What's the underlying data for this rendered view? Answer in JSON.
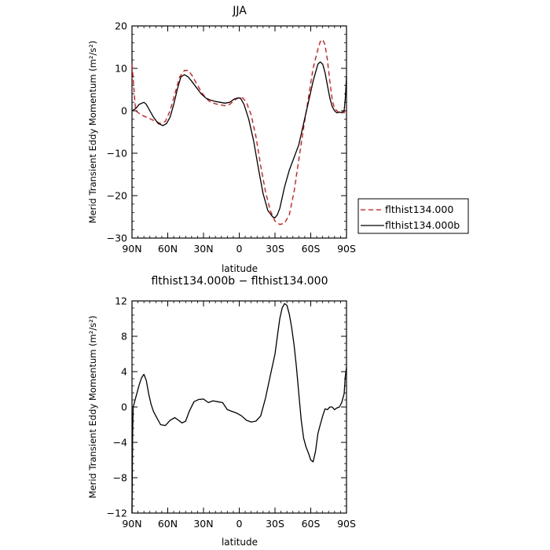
{
  "chart_data": [
    {
      "type": "line",
      "title": "JJA",
      "xlabel": "latitude",
      "ylabel": "Merid Transient Eddy Momentum (m²/s²)",
      "xlim": [
        -90,
        90
      ],
      "ylim": [
        -30,
        20
      ],
      "x_ticks": [
        -90,
        -60,
        -30,
        0,
        30,
        60,
        90
      ],
      "x_tick_labels": [
        "90N",
        "60N",
        "30N",
        "0",
        "30S",
        "60S",
        "90S"
      ],
      "y_ticks": [
        -30,
        -20,
        -10,
        0,
        10,
        20
      ],
      "y_tick_labels": [
        "−30",
        "−20",
        "−10",
        "0",
        "10",
        "20"
      ],
      "legend_position": "right",
      "series": [
        {
          "name": "flthist134.000",
          "color": "#ff0000",
          "dash": "dashed",
          "x": [
            -90,
            -87,
            -82,
            -78,
            -74,
            -70,
            -66,
            -62,
            -58,
            -54,
            -50,
            -46,
            -43,
            -40,
            -36,
            -32,
            -28,
            -24,
            -18,
            -12,
            -8,
            -4,
            0,
            3,
            6,
            10,
            14,
            18,
            22,
            26,
            30,
            34,
            38,
            42,
            46,
            50,
            54,
            58,
            62,
            66,
            68,
            70,
            72,
            74,
            76,
            78,
            80,
            82,
            84,
            86,
            88,
            89,
            90
          ],
          "y": [
            11,
            0,
            -1,
            -1.5,
            -2,
            -2.5,
            -3,
            -2.5,
            0,
            4,
            8,
            9.5,
            9.5,
            8.5,
            6.5,
            4.5,
            3,
            2,
            1.5,
            1.2,
            1.5,
            2.5,
            3.2,
            3,
            2,
            -1,
            -6,
            -13,
            -19,
            -23.5,
            -26,
            -26.8,
            -26.5,
            -24.5,
            -19,
            -11.5,
            -4,
            3,
            10,
            14.5,
            16.3,
            16.8,
            15.5,
            12,
            7,
            2.5,
            0.5,
            0,
            -0.5,
            -0.3,
            -0.5,
            0.5,
            1
          ]
        },
        {
          "name": "flthist134.000b",
          "color": "#000000",
          "dash": "solid",
          "x": [
            -90,
            -87,
            -84,
            -80,
            -78,
            -76,
            -72,
            -68,
            -64,
            -61,
            -58,
            -55,
            -52,
            -49,
            -46,
            -43,
            -40,
            -36,
            -32,
            -28,
            -24,
            -20,
            -16,
            -12,
            -8,
            -4,
            -1,
            1,
            4,
            8,
            12,
            16,
            20,
            24,
            28,
            30,
            32,
            34,
            38,
            42,
            46,
            50,
            54,
            58,
            62,
            66,
            68,
            70,
            72,
            74,
            76,
            78,
            80,
            82,
            84,
            86,
            87,
            88,
            89,
            90
          ],
          "y": [
            0,
            0.5,
            1.5,
            2,
            1.5,
            0.5,
            -1.5,
            -3,
            -3.5,
            -3,
            -1.5,
            1.5,
            5,
            8,
            8.5,
            8,
            7,
            5.5,
            4,
            3,
            2.5,
            2.2,
            2,
            1.8,
            2,
            2.8,
            3,
            3,
            1.5,
            -2,
            -7,
            -13.5,
            -19.5,
            -23.5,
            -25,
            -25.2,
            -24.5,
            -23,
            -18,
            -14,
            -11,
            -8,
            -3,
            2,
            7,
            11,
            11.5,
            11,
            9,
            6,
            3,
            1,
            0,
            -0.5,
            -0.3,
            -0.5,
            -0.2,
            0,
            3,
            8
          ]
        }
      ]
    },
    {
      "type": "line",
      "title": "flthist134.000b − flthist134.000",
      "xlabel": "latitude",
      "ylabel": "Merid Transient Eddy Momentum (m²/s²)",
      "xlim": [
        -90,
        90
      ],
      "ylim": [
        -12,
        12
      ],
      "x_ticks": [
        -90,
        -60,
        -30,
        0,
        30,
        60,
        90
      ],
      "x_tick_labels": [
        "90N",
        "60N",
        "30N",
        "0",
        "30S",
        "60S",
        "90S"
      ],
      "y_ticks": [
        -12,
        -8,
        -4,
        0,
        4,
        8,
        12
      ],
      "y_tick_labels": [
        "−12",
        "−8",
        "−4",
        "0",
        "4",
        "8",
        "12"
      ],
      "series": [
        {
          "color": "#000000",
          "dash": "solid",
          "x": [
            -90,
            -89.5,
            -89,
            -88,
            -86,
            -84,
            -82,
            -80,
            -78,
            -76,
            -74,
            -72,
            -70,
            -66,
            -62,
            -58,
            -54,
            -51,
            -48,
            -45,
            -42,
            -38,
            -34,
            -30,
            -26,
            -22,
            -18,
            -14,
            -10,
            -6,
            -2,
            2,
            6,
            10,
            14,
            18,
            22,
            26,
            30,
            32,
            34,
            36,
            38,
            40,
            42,
            44,
            46,
            48,
            50,
            52,
            54,
            56,
            58,
            60,
            62,
            64,
            66,
            68,
            70,
            72,
            74,
            76,
            78,
            80,
            82,
            84,
            86,
            88,
            89,
            90
          ],
          "y": [
            -12,
            -3,
            0,
            0.5,
            1.5,
            2.5,
            3.3,
            3.7,
            3,
            1.5,
            0.3,
            -0.5,
            -1,
            -2,
            -2.1,
            -1.5,
            -1.2,
            -1.5,
            -1.8,
            -1.6,
            -0.5,
            0.6,
            0.85,
            0.9,
            0.5,
            0.7,
            0.6,
            0.5,
            -0.3,
            -0.5,
            -0.7,
            -1,
            -1.5,
            -1.7,
            -1.6,
            -1,
            1,
            3.5,
            6,
            8,
            10,
            11.2,
            11.7,
            11.5,
            10.5,
            9,
            7,
            4.5,
            1.5,
            -1.5,
            -3.5,
            -4.5,
            -5.2,
            -6,
            -6.2,
            -5,
            -3,
            -2,
            -1,
            -0.2,
            -0.3,
            0,
            0,
            -0.3,
            -0.1,
            0,
            0.5,
            1.5,
            3.5,
            4.5
          ]
        }
      ]
    }
  ]
}
